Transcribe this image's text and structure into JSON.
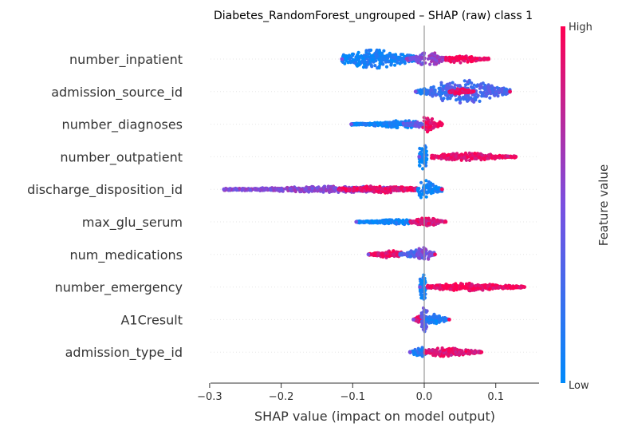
{
  "chart_data": {
    "type": "scatter",
    "title": "Diabetes_RandomForest_ungrouped – SHAP (raw) class 1",
    "xlabel": "SHAP value (impact on model output)",
    "ylabel": "",
    "xlim": [
      -0.3,
      0.16
    ],
    "xticks": [
      -0.3,
      -0.2,
      -0.1,
      0.0,
      0.1
    ],
    "xtick_labels": [
      "−0.3",
      "−0.2",
      "−0.1",
      "0.0",
      "0.1"
    ],
    "grid": false,
    "colorbar": {
      "label": "Feature value",
      "high_label": "High",
      "low_label": "Low",
      "low_color": "#008afb",
      "high_color": "#ff0052"
    },
    "features": [
      {
        "name": "number_inpatient",
        "min": -0.115,
        "max": 0.09,
        "clusters": [
          [
            -0.115,
            -0.005,
            -0.07,
            0.03,
            0.08
          ],
          [
            -0.025,
            0.002,
            0.0,
            0.02,
            0.5
          ],
          [
            0.005,
            0.03,
            0.012,
            0.022,
            0.6
          ],
          [
            0.03,
            0.09,
            0.05,
            0.012,
            0.95
          ]
        ]
      },
      {
        "name": "admission_source_id",
        "min": -0.012,
        "max": 0.12,
        "clusters": [
          [
            -0.012,
            0.008,
            0.0,
            0.01,
            0.15
          ],
          [
            0.008,
            0.045,
            0.025,
            0.03,
            0.25
          ],
          [
            0.03,
            0.12,
            0.06,
            0.04,
            0.3
          ],
          [
            0.035,
            0.07,
            0.05,
            0.01,
            0.95
          ]
        ]
      },
      {
        "name": "number_diagnoses",
        "min": -0.102,
        "max": 0.025,
        "clusters": [
          [
            -0.102,
            -0.01,
            -0.03,
            0.012,
            0.05
          ],
          [
            -0.03,
            0.0,
            -0.008,
            0.01,
            0.4
          ],
          [
            -0.002,
            0.025,
            0.004,
            0.026,
            0.95
          ]
        ]
      },
      {
        "name": "number_outpatient",
        "min": -0.007,
        "max": 0.128,
        "clusters": [
          [
            -0.007,
            0.004,
            -0.002,
            0.045,
            0.04
          ],
          [
            0.01,
            0.128,
            0.06,
            0.012,
            0.92
          ]
        ]
      },
      {
        "name": "discharge_disposition_id",
        "min": -0.28,
        "max": 0.025,
        "clusters": [
          [
            -0.28,
            -0.01,
            -0.12,
            0.01,
            0.55
          ],
          [
            -0.12,
            -0.01,
            -0.06,
            0.012,
            0.92
          ],
          [
            -0.01,
            0.025,
            0.0,
            0.03,
            0.08
          ]
        ]
      },
      {
        "name": "max_glu_serum",
        "min": -0.095,
        "max": 0.03,
        "clusters": [
          [
            -0.095,
            -0.02,
            -0.03,
            0.01,
            0.05
          ],
          [
            -0.02,
            0.01,
            0.0,
            0.014,
            0.9
          ],
          [
            0.0,
            0.03,
            0.008,
            0.012,
            0.85
          ]
        ]
      },
      {
        "name": "num_medications",
        "min": -0.078,
        "max": 0.015,
        "clusters": [
          [
            -0.078,
            -0.03,
            -0.045,
            0.012,
            0.9
          ],
          [
            -0.035,
            0.0,
            -0.01,
            0.016,
            0.3
          ],
          [
            -0.01,
            0.015,
            0.0,
            0.03,
            0.5
          ]
        ]
      },
      {
        "name": "number_emergency",
        "min": -0.006,
        "max": 0.14,
        "clusters": [
          [
            -0.006,
            0.002,
            -0.002,
            0.045,
            0.04
          ],
          [
            0.004,
            0.14,
            0.06,
            0.012,
            0.96
          ]
        ]
      },
      {
        "name": "A1Cresult",
        "min": -0.015,
        "max": 0.035,
        "clusters": [
          [
            -0.015,
            0.002,
            -0.005,
            0.012,
            0.9
          ],
          [
            -0.004,
            0.004,
            0.0,
            0.04,
            0.4
          ],
          [
            0.002,
            0.035,
            0.012,
            0.018,
            0.1
          ]
        ]
      },
      {
        "name": "admission_type_id",
        "min": -0.02,
        "max": 0.08,
        "clusters": [
          [
            -0.02,
            0.004,
            -0.005,
            0.016,
            0.15
          ],
          [
            0.0,
            0.08,
            0.03,
            0.014,
            0.88
          ]
        ]
      }
    ]
  }
}
